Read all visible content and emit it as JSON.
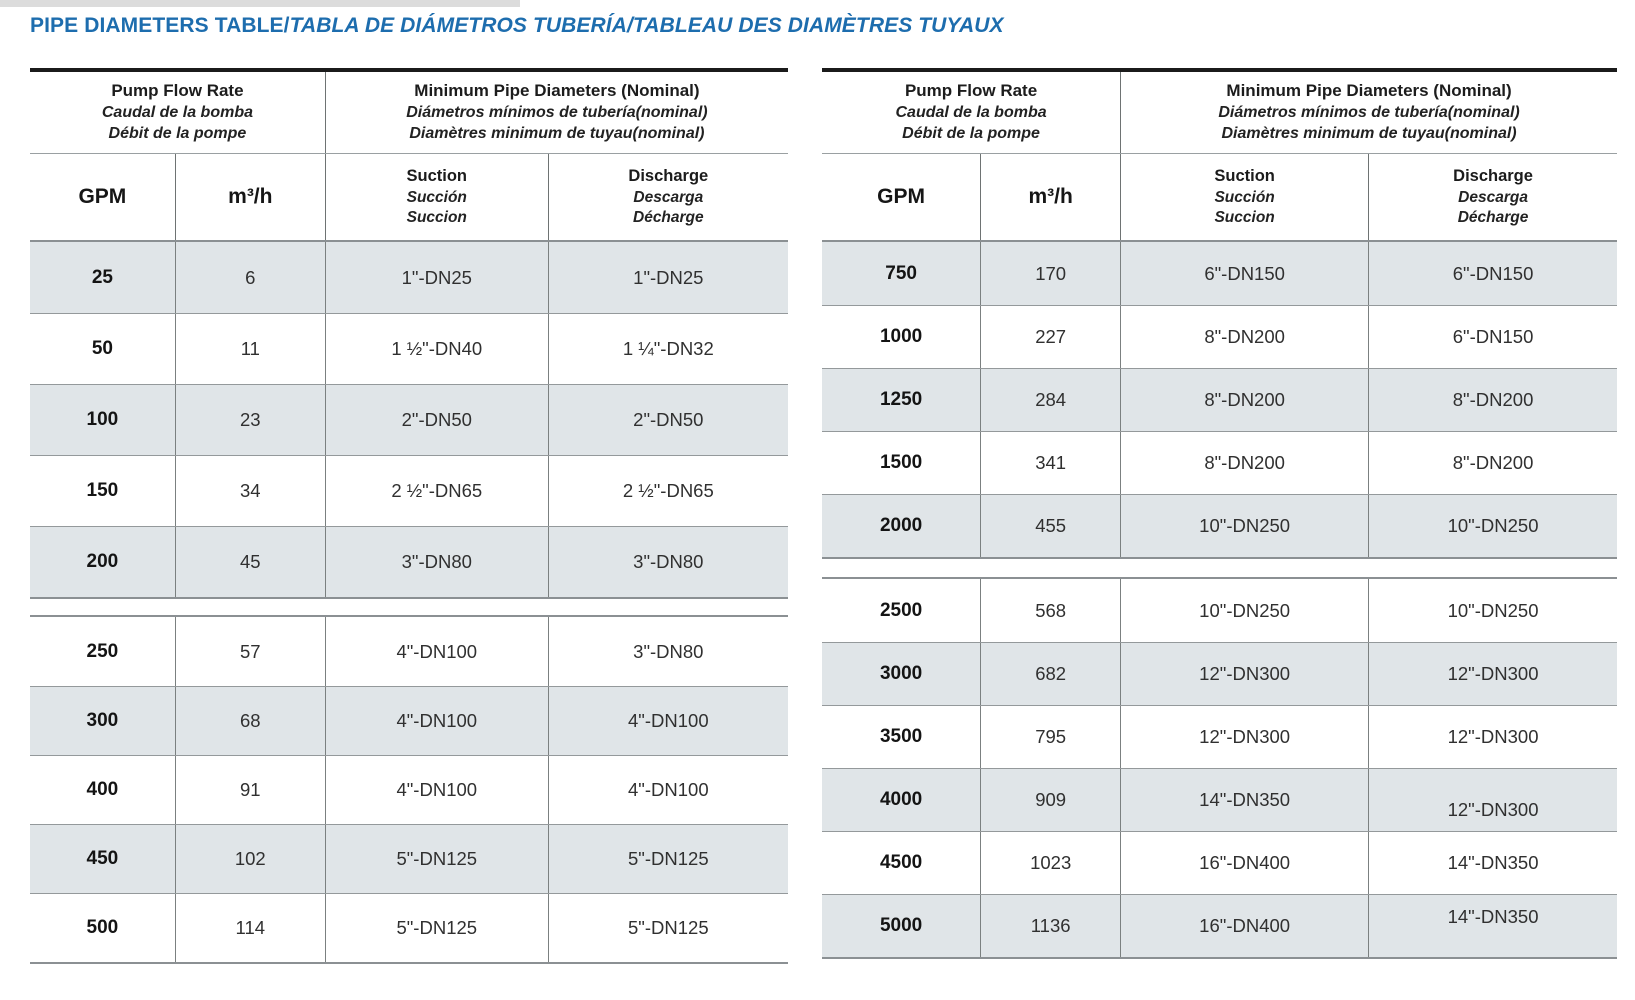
{
  "title": {
    "main": "PIPE DIAMETERS TABLE/",
    "translations": "TABLA DE DIÁMETROS TUBERÍA/TABLEAU DES DIAMÈTRES TUYAUX"
  },
  "colors": {
    "title_blue": "#1d6dae",
    "shaded_row": "#e0e5e8"
  },
  "columns": {
    "flow_group": {
      "l1": "Pump Flow Rate",
      "l2": "Caudal de la bomba",
      "l3": "Débit de la pompe"
    },
    "diam_group": {
      "l1": "Minimum Pipe Diameters (Nominal)",
      "l2": "Diámetros mínimos de tubería(nominal)",
      "l3": "Diamètres minimum de tuyau(nominal)"
    },
    "gpm": "GPM",
    "m3h": "m³/h",
    "suction": {
      "l1": "Suction",
      "l2": "Succión",
      "l3": "Succion"
    },
    "discharge": {
      "l1": "Discharge",
      "l2": "Descarga",
      "l3": "Décharge"
    }
  },
  "tables": [
    {
      "id": "left",
      "sections": [
        {
          "rows": [
            [
              "25",
              "6",
              "1\"-DN25",
              "1\"-DN25"
            ],
            [
              "50",
              "11",
              "1 ½\"-DN40",
              "1 ¼\"-DN32"
            ],
            [
              "100",
              "23",
              "2\"-DN50",
              "2\"-DN50"
            ],
            [
              "150",
              "34",
              "2 ½\"-DN65",
              "2 ½\"-DN65"
            ],
            [
              "200",
              "45",
              "3\"-DN80",
              "3\"-DN80"
            ]
          ]
        },
        {
          "rows": [
            [
              "250",
              "57",
              "4\"-DN100",
              "3\"-DN80"
            ],
            [
              "300",
              "68",
              "4\"-DN100",
              "4\"-DN100"
            ],
            [
              "400",
              "91",
              "4\"-DN100",
              "4\"-DN100"
            ],
            [
              "450",
              "102",
              "5\"-DN125",
              "5\"-DN125"
            ],
            [
              "500",
              "114",
              "5\"-DN125",
              "5\"-DN125"
            ]
          ]
        }
      ]
    },
    {
      "id": "right",
      "sections": [
        {
          "rows": [
            [
              "750",
              "170",
              "6\"-DN150",
              "6\"-DN150"
            ],
            [
              "1000",
              "227",
              "8\"-DN200",
              "6\"-DN150"
            ],
            [
              "1250",
              "284",
              "8\"-DN200",
              "8\"-DN200"
            ],
            [
              "1500",
              "341",
              "8\"-DN200",
              "8\"-DN200"
            ],
            [
              "2000",
              "455",
              "10\"-DN250",
              "10\"-DN250"
            ]
          ]
        },
        {
          "rows": [
            [
              "2500",
              "568",
              "10\"-DN250",
              "10\"-DN250"
            ],
            [
              "3000",
              "682",
              "12\"-DN300",
              "12\"-DN300"
            ],
            [
              "3500",
              "795",
              "12\"-DN300",
              "12\"-DN300"
            ],
            [
              "4000",
              "909",
              "14\"-DN350",
              "12\"-DN300"
            ],
            [
              "4500",
              "1023",
              "16\"-DN400",
              "14\"-DN350"
            ],
            [
              "5000",
              "1136",
              "16\"-DN400",
              "14\"-DN350"
            ]
          ]
        }
      ]
    }
  ]
}
